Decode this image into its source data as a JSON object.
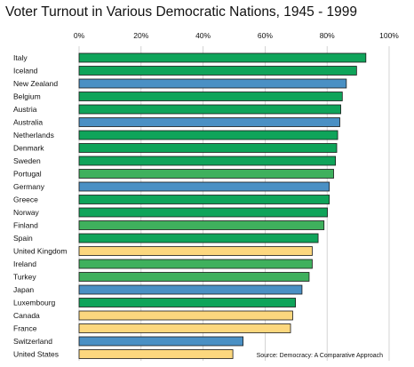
{
  "chart_data": {
    "type": "bar",
    "orientation": "horizontal",
    "title": "Voter Turnout in Various Democratic Nations, 1945 - 1999",
    "xlim": [
      0,
      100
    ],
    "ticks": [
      "0%",
      "20%",
      "40%",
      "60%",
      "80%",
      "100%"
    ],
    "tick_values": [
      0,
      20,
      40,
      60,
      80,
      100
    ],
    "grid": true,
    "source": "Source: Democracy: A Comparative Approach",
    "bars": [
      {
        "category": "Italy",
        "value": 92.5,
        "color": "#0fa45a"
      },
      {
        "category": "Iceland",
        "value": 89.5,
        "color": "#0fa45a"
      },
      {
        "category": "New Zealand",
        "value": 86.2,
        "color": "#4a90c4"
      },
      {
        "category": "Belgium",
        "value": 84.9,
        "color": "#0fa45a"
      },
      {
        "category": "Austria",
        "value": 84.4,
        "color": "#0fa45a"
      },
      {
        "category": "Australia",
        "value": 84.1,
        "color": "#4a90c4"
      },
      {
        "category": "Netherlands",
        "value": 83.4,
        "color": "#0fa45a"
      },
      {
        "category": "Denmark",
        "value": 83.1,
        "color": "#0fa45a"
      },
      {
        "category": "Sweden",
        "value": 82.7,
        "color": "#0fa45a"
      },
      {
        "category": "Portugal",
        "value": 82.1,
        "color": "#3fb05d"
      },
      {
        "category": "Germany",
        "value": 80.7,
        "color": "#4a90c4"
      },
      {
        "category": "Greece",
        "value": 80.7,
        "color": "#0fa45a"
      },
      {
        "category": "Norway",
        "value": 80.1,
        "color": "#0fa45a"
      },
      {
        "category": "Finland",
        "value": 79.0,
        "color": "#3fb05d"
      },
      {
        "category": "Spain",
        "value": 77.1,
        "color": "#0fa45a"
      },
      {
        "category": "United Kingdom",
        "value": 75.2,
        "color": "#fcd77e"
      },
      {
        "category": "Ireland",
        "value": 75.2,
        "color": "#3fb05d"
      },
      {
        "category": "Turkey",
        "value": 74.2,
        "color": "#3fb05d"
      },
      {
        "category": "Japan",
        "value": 71.9,
        "color": "#4a90c4"
      },
      {
        "category": "Luxembourg",
        "value": 69.8,
        "color": "#0fa45a"
      },
      {
        "category": "Canada",
        "value": 68.9,
        "color": "#fcd77e"
      },
      {
        "category": "France",
        "value": 68.2,
        "color": "#fcd77e"
      },
      {
        "category": "Switzerland",
        "value": 52.9,
        "color": "#4a90c4"
      },
      {
        "category": "United States",
        "value": 49.6,
        "color": "#fcd77e"
      }
    ]
  }
}
